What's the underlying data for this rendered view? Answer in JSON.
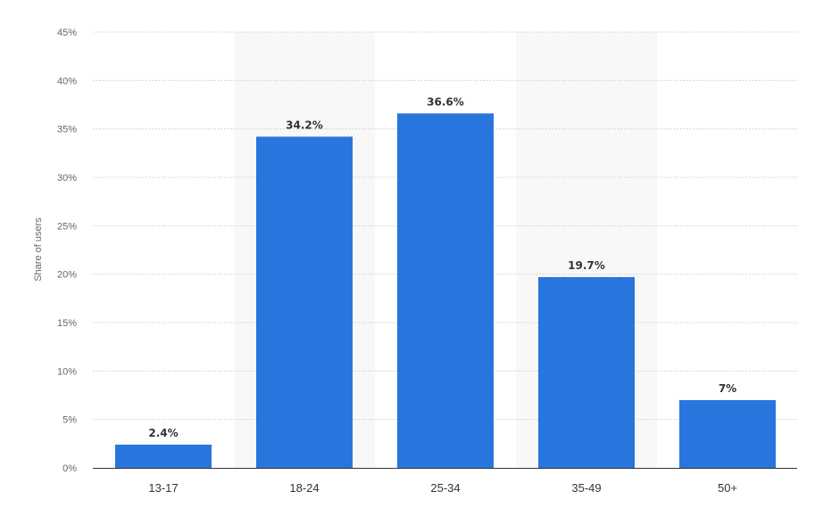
{
  "chart_data": {
    "type": "bar",
    "categories": [
      "13-17",
      "18-24",
      "25-34",
      "35-49",
      "50+"
    ],
    "values": [
      2.4,
      34.2,
      36.6,
      19.7,
      7
    ],
    "value_labels": [
      "2.4%",
      "34.2%",
      "36.6%",
      "19.7%",
      "7%"
    ],
    "title": "",
    "xlabel": "",
    "ylabel": "Share of users",
    "ylim": [
      0,
      45
    ],
    "yticks": [
      0,
      5,
      10,
      15,
      20,
      25,
      30,
      35,
      40,
      45
    ],
    "ytick_labels": [
      "0%",
      "5%",
      "10%",
      "15%",
      "20%",
      "25%",
      "30%",
      "35%",
      "40%",
      "45%"
    ],
    "grid": true,
    "alternating_background_bands": true,
    "bar_color": "#2876dd",
    "band_color": "#f8f8f8",
    "grid_color": "#cccccc",
    "axis_color": "#333333"
  }
}
